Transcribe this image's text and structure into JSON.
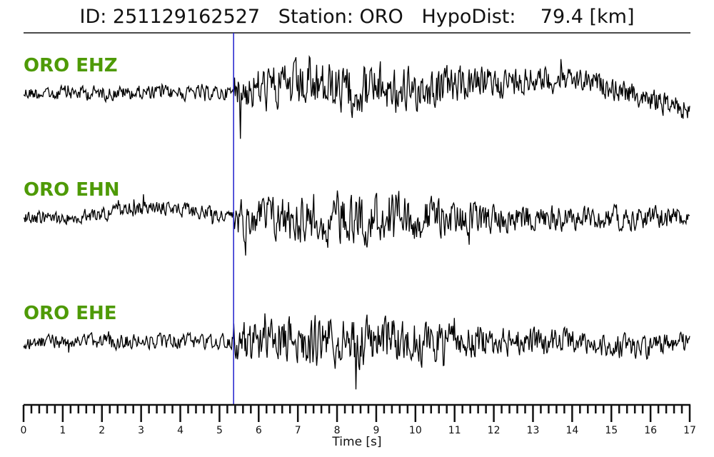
{
  "chart_data": {
    "type": "line",
    "title": "ID: 251129162527   Station: ORO   HypoDist:    79.4 [km]",
    "xlabel": "Time [s]",
    "xlim": [
      0,
      17
    ],
    "xticks": [
      "0",
      "1",
      "2",
      "3",
      "4",
      "5",
      "6",
      "7",
      "8",
      "9",
      "10",
      "11",
      "12",
      "13",
      "14",
      "15",
      "16",
      "17"
    ],
    "minor_tick_step": 0.2,
    "series": [
      {
        "name": "ORO EHZ"
      },
      {
        "name": "ORO EHN"
      },
      {
        "name": "ORO EHE"
      }
    ],
    "pick_time": 5.36,
    "colors": {
      "trace": "#000000",
      "label": "#4e9a06",
      "pick": "#1f1fcc"
    }
  }
}
